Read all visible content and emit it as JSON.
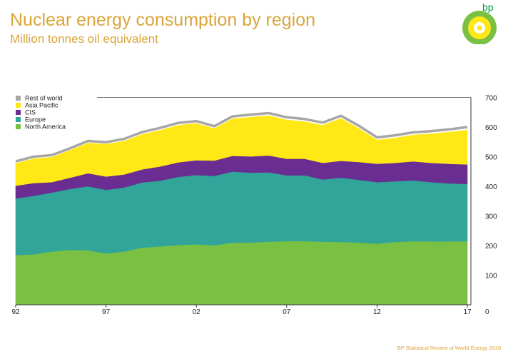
{
  "header": {
    "title": "Nuclear energy consumption by region",
    "subtitle": "Million tonnes oil equivalent",
    "logo_text": "bp"
  },
  "footer": {
    "source": "BP Statistical Review of World Energy 2018"
  },
  "colors": {
    "title": "#d9a53a",
    "rest_of_world": "#a6a6a6",
    "asia_pacific": "#ffe816",
    "cis": "#6a2d91",
    "europe": "#31a599",
    "north_america": "#7ac143",
    "axis": "#333333",
    "gridline": "#777777"
  },
  "chart_data": {
    "type": "area",
    "stacked": true,
    "title": "Nuclear energy consumption by region",
    "ylabel": "Million tonnes oil equivalent",
    "x": [
      1992,
      1993,
      1994,
      1995,
      1996,
      1997,
      1998,
      1999,
      2000,
      2001,
      2002,
      2003,
      2004,
      2005,
      2006,
      2007,
      2008,
      2009,
      2010,
      2011,
      2012,
      2013,
      2014,
      2015,
      2016,
      2017
    ],
    "xticks": [
      {
        "value": 1992,
        "label": "92"
      },
      {
        "value": 1997,
        "label": "97"
      },
      {
        "value": 2002,
        "label": "02"
      },
      {
        "value": 2007,
        "label": "07"
      },
      {
        "value": 2012,
        "label": "12"
      },
      {
        "value": 2017,
        "label": "17"
      }
    ],
    "yticks": [
      0,
      100,
      200,
      300,
      400,
      500,
      600,
      700
    ],
    "ylim": [
      0,
      700
    ],
    "y_axis_side": "right",
    "grid": "top gridline only",
    "legend_placement": "top-left",
    "series": [
      {
        "name": "North America",
        "color": "#7ac143",
        "values": [
          168,
          170,
          180,
          185,
          184,
          173,
          180,
          193,
          197,
          202,
          204,
          201,
          210,
          210,
          213,
          215,
          215,
          213,
          212,
          210,
          206,
          212,
          215,
          214,
          214,
          215
        ]
      },
      {
        "name": "Europe",
        "color": "#31a599",
        "values": [
          191,
          198,
          199,
          206,
          216,
          215,
          216,
          220,
          222,
          230,
          234,
          234,
          240,
          236,
          234,
          222,
          222,
          210,
          217,
          212,
          208,
          205,
          205,
          200,
          196,
          193
        ]
      },
      {
        "name": "CIS",
        "color": "#6a2d91",
        "values": [
          43,
          43,
          35,
          38,
          44,
          45,
          44,
          44,
          48,
          49,
          50,
          52,
          53,
          55,
          57,
          56,
          56,
          56,
          57,
          60,
          62,
          62,
          64,
          65,
          66,
          66
        ]
      },
      {
        "name": "Asia Pacific",
        "color": "#ffe816",
        "values": [
          75,
          82,
          84,
          92,
          102,
          109,
          112,
          118,
          122,
          125,
          124,
          108,
          125,
          132,
          134,
          131,
          125,
          127,
          143,
          113,
          80,
          84,
          89,
          98,
          107,
          116
        ]
      },
      {
        "name": "Rest of world",
        "color": "#a6a6a6",
        "values": [
          7,
          7,
          7,
          7,
          7,
          7,
          8,
          8,
          8,
          8,
          8,
          8,
          8,
          9,
          9,
          9,
          9,
          9,
          9,
          9,
          9,
          9,
          9,
          9,
          9,
          10
        ]
      }
    ]
  }
}
